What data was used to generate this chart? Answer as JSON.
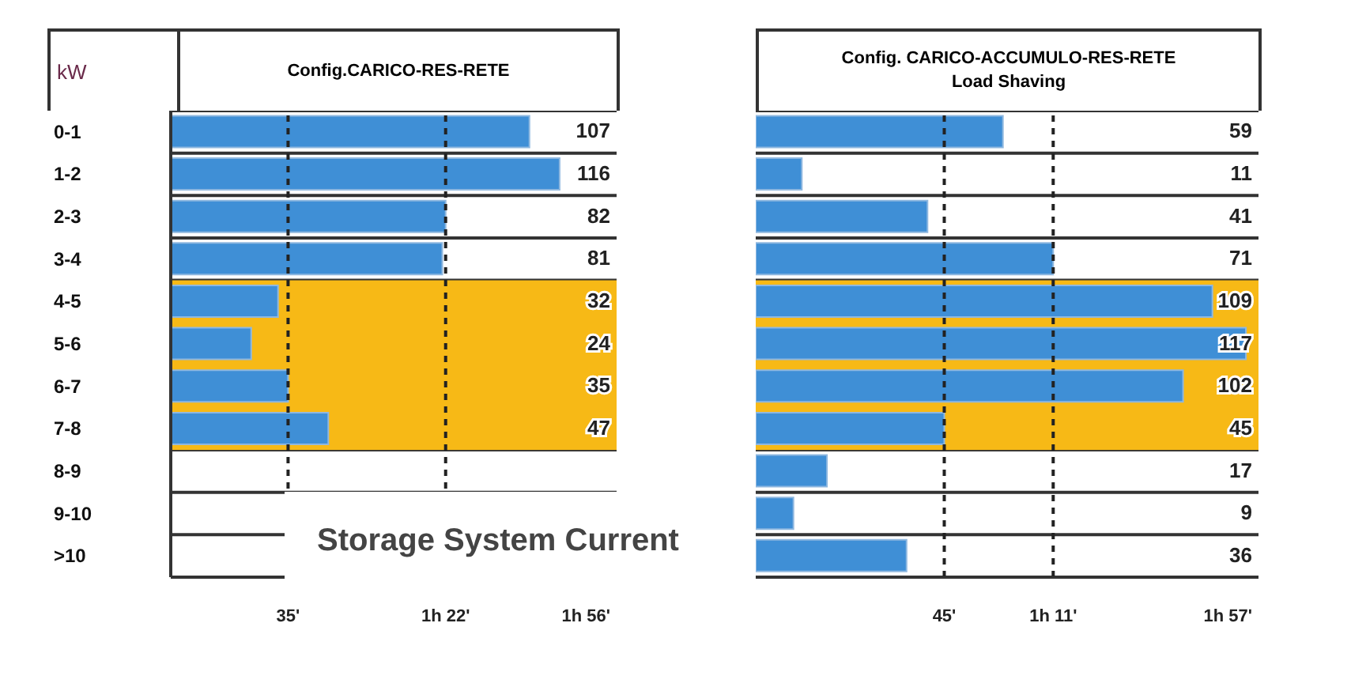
{
  "chart_data": [
    {
      "type": "bar",
      "orientation": "horizontal",
      "title": "Config.CARICO-RES-RETE",
      "ylabel": "kW",
      "categories": [
        "0-1",
        "1-2",
        "2-3",
        "3-4",
        "4-5",
        "5-6",
        "6-7",
        "7-8",
        "8-9",
        "9-10",
        ">10"
      ],
      "values": [
        107,
        116,
        82,
        81,
        32,
        24,
        35,
        47,
        null,
        null,
        null
      ],
      "color": "#3f8fd6",
      "xlim": [
        0,
        133
      ],
      "ref_lines": [
        {
          "axis": "x",
          "value": 35,
          "label": "35'",
          "line_style": "dashed"
        },
        {
          "axis": "x",
          "value": 82,
          "label": "1h 22'",
          "line_style": "dashed"
        }
      ],
      "bands": [
        {
          "axis": "y",
          "from": "4-5",
          "to": "7-8",
          "color": "#f7b916"
        }
      ],
      "data_labels": true,
      "grid": "y",
      "annotations": [
        "1h 56'",
        "Storage System Current"
      ]
    },
    {
      "type": "bar",
      "orientation": "horizontal",
      "title": "Config. CARICO-ACCUMULO-RES-RETE",
      "subtitle": "Load Shaving",
      "categories": [
        "0-1",
        "1-2",
        "2-3",
        "3-4",
        "4-5",
        "5-6",
        "6-7",
        "7-8",
        "8-9",
        "9-10",
        ">10"
      ],
      "values": [
        59,
        11,
        41,
        71,
        109,
        117,
        102,
        45,
        17,
        9,
        36
      ],
      "color": "#3f8fd6",
      "xlim": [
        0,
        120
      ],
      "ref_lines": [
        {
          "axis": "x",
          "value": 45,
          "label": "45'",
          "line_style": "dashed"
        },
        {
          "axis": "x",
          "value": 71,
          "label": "1h 11'",
          "line_style": "dashed"
        }
      ],
      "bands": [
        {
          "axis": "y",
          "from": "4-5",
          "to": "7-8",
          "color": "#f7b916"
        }
      ],
      "data_labels": true,
      "grid": "y",
      "tick_labels": "x",
      "annotations": [
        "1h 57'"
      ]
    }
  ]
}
